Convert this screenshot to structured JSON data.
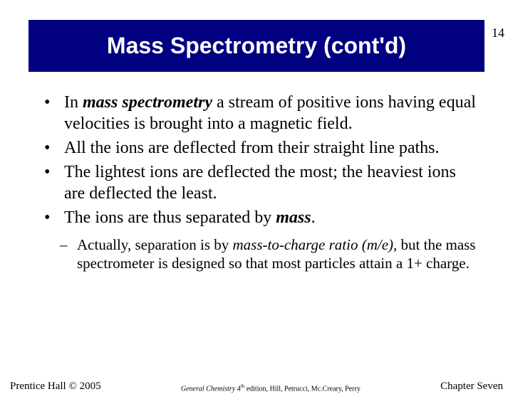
{
  "page_number": "14",
  "title": "Mass Spectrometry (cont'd)",
  "bullets": [
    {
      "pre": "In ",
      "bold": "mass spectrometry",
      "post": " a stream of positive ions having equal velocities is brought into a magnetic field."
    },
    {
      "pre": "",
      "bold": "",
      "post": "All the ions are deflected from their straight line paths."
    },
    {
      "pre": "",
      "bold": "",
      "post": "The lightest ions are deflected the most; the heaviest ions are deflected the least."
    },
    {
      "pre": "The ions are thus separated by ",
      "bold": "mass",
      "post": "."
    }
  ],
  "sub_bullet": {
    "pre": "Actually, separation is by ",
    "bold": "mass-to-charge ratio (m/e)",
    "post": ", but the mass spectrometer is designed so that most particles attain a 1+ charge."
  },
  "footer": {
    "left": "Prentice Hall © 2005",
    "center_pre": "General Chemistry",
    "center_sup": "th",
    "center_ed": " 4",
    "center_post": " edition, Hill, Petrucci, Mc.Creary, Perry",
    "right": "Chapter Seven"
  },
  "colors": {
    "title_bg": "#000080",
    "title_fg": "#ffffff",
    "text": "#000000",
    "page_bg": "#ffffff"
  }
}
